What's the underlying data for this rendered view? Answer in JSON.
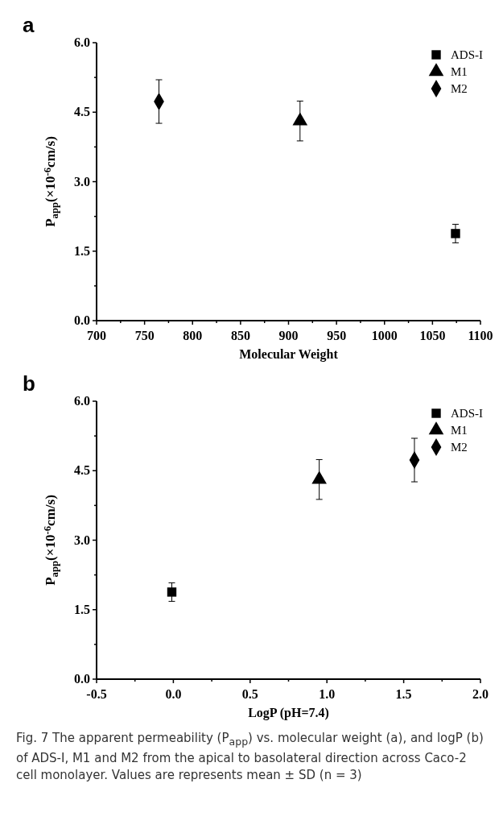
{
  "chart_data": [
    {
      "type": "scatter",
      "title": "a",
      "xlabel": "Molecular Weight",
      "ylabel": "P$_{app}$(×10$^{-6}$cm/s)",
      "xlim": [
        700,
        1100
      ],
      "ylim": [
        0,
        6
      ],
      "xticks": [
        700,
        {
          "value": 725,
          "label": null
        },
        750,
        {
          "value": 775,
          "label": null
        },
        800,
        {
          "value": 825,
          "label": null
        },
        850,
        {
          "value": 875,
          "label": null
        },
        900,
        {
          "value": 925,
          "label": null
        },
        950,
        {
          "value": 975,
          "label": null
        },
        1000,
        {
          "value": 1025,
          "label": null
        },
        1050,
        {
          "value": 1075,
          "label": null
        },
        1100
      ],
      "yticks": [
        {
          "value": 0,
          "label": "0.0"
        },
        {
          "value": 0.75,
          "label": null
        },
        {
          "value": 1.5,
          "label": "1.5"
        },
        {
          "value": 2.25,
          "label": null
        },
        {
          "value": 3,
          "label": "3.0"
        },
        {
          "value": 3.75,
          "label": null
        },
        {
          "value": 4.5,
          "label": "4.5"
        },
        {
          "value": 5.25,
          "label": null
        },
        {
          "value": 6,
          "label": "6.0"
        }
      ],
      "legend": "top right",
      "grid": false,
      "series": [
        {
          "name": "ADS-I",
          "color": "#000000",
          "marker": "square",
          "x": [
            1074
          ],
          "values": [
            1.88
          ],
          "errors": [
            0.2
          ]
        },
        {
          "name": "M1",
          "color": "#000000",
          "marker": "triangle",
          "x": [
            912
          ],
          "values": [
            4.31
          ],
          "errors": [
            0.43
          ]
        },
        {
          "name": "M2",
          "color": "#000000",
          "marker": "diamond",
          "x": [
            765
          ],
          "values": [
            4.73
          ],
          "errors": [
            0.47
          ]
        }
      ]
    },
    {
      "type": "scatter",
      "title": "b",
      "xlabel": "LogP (pH=7.4)",
      "ylabel": "P$_{app}$(×10$^{-6}$cm/s)",
      "xlim": [
        -0.5,
        2
      ],
      "ylim": [
        0,
        6
      ],
      "xticks": [
        {
          "value": -0.5,
          "label": "-0.5"
        },
        {
          "value": -0.25,
          "label": null
        },
        {
          "value": 0,
          "label": "0.0"
        },
        {
          "value": 0.25,
          "label": null
        },
        {
          "value": 0.5,
          "label": "0.5"
        },
        {
          "value": 0.75,
          "label": null
        },
        {
          "value": 1,
          "label": "1.0"
        },
        {
          "value": 1.25,
          "label": null
        },
        {
          "value": 1.5,
          "label": "1.5"
        },
        {
          "value": 1.75,
          "label": null
        },
        {
          "value": 2,
          "label": "2.0"
        }
      ],
      "yticks": [
        {
          "value": 0,
          "label": "0.0"
        },
        {
          "value": 0.75,
          "label": null
        },
        {
          "value": 1.5,
          "label": "1.5"
        },
        {
          "value": 2.25,
          "label": null
        },
        {
          "value": 3,
          "label": "3.0"
        },
        {
          "value": 3.75,
          "label": null
        },
        {
          "value": 4.5,
          "label": "4.5"
        },
        {
          "value": 5.25,
          "label": null
        },
        {
          "value": 6,
          "label": "6.0"
        }
      ],
      "legend": "top right",
      "grid": false,
      "series": [
        {
          "name": "ADS-I",
          "color": "#000000",
          "marker": "square",
          "x": [
            -0.01
          ],
          "values": [
            1.88
          ],
          "errors": [
            0.2
          ]
        },
        {
          "name": "M1",
          "color": "#000000",
          "marker": "triangle",
          "x": [
            0.95
          ],
          "values": [
            4.31
          ],
          "errors": [
            0.43
          ]
        },
        {
          "name": "M2",
          "color": "#000000",
          "marker": "diamond",
          "x": [
            1.57
          ],
          "values": [
            4.73
          ],
          "errors": [
            0.47
          ]
        }
      ],
      "annotations": [
        "Fig. 7  The apparent permeability (P$_{app}$) vs. molecular weight (a), and logP (b) of ADS-I, M1 and M2 from the apical to basolateral direction across Caco-2 cell monolayer. Values are represents mean ± SD (n = 3)"
      ]
    }
  ]
}
